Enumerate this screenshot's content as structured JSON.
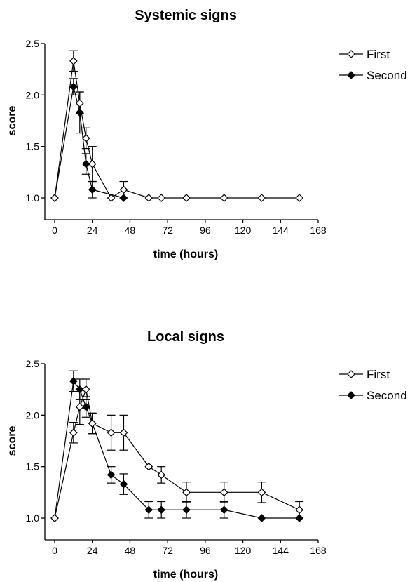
{
  "chart_data": [
    {
      "type": "line",
      "title": "Systemic signs",
      "xlabel": "time (hours)",
      "ylabel": "score",
      "xlim": [
        0,
        168
      ],
      "ylim": [
        1.0,
        2.5
      ],
      "xticks": [
        0,
        24,
        48,
        72,
        96,
        120,
        144,
        168
      ],
      "yticks": [
        "1.0",
        "1.5",
        "2.0",
        "2.5"
      ],
      "legend_position": "top-right",
      "series": [
        {
          "name": "First",
          "marker": "open-diamond",
          "points": [
            {
              "x": 0,
              "y": 1.0,
              "err": 0
            },
            {
              "x": 12,
              "y": 2.33,
              "err": 0.1
            },
            {
              "x": 16,
              "y": 1.92,
              "err": 0.1
            },
            {
              "x": 20,
              "y": 1.58,
              "err": 0.1
            },
            {
              "x": 24,
              "y": 1.33,
              "err": 0.17
            },
            {
              "x": 36,
              "y": 1.0,
              "err": 0
            },
            {
              "x": 44,
              "y": 1.08,
              "err": 0.08
            },
            {
              "x": 60,
              "y": 1.0,
              "err": 0
            },
            {
              "x": 68,
              "y": 1.0,
              "err": 0
            },
            {
              "x": 84,
              "y": 1.0,
              "err": 0
            },
            {
              "x": 108,
              "y": 1.0,
              "err": 0
            },
            {
              "x": 132,
              "y": 1.0,
              "err": 0
            },
            {
              "x": 156,
              "y": 1.0,
              "err": 0
            }
          ]
        },
        {
          "name": "Second",
          "marker": "filled-diamond",
          "points": [
            {
              "x": 0,
              "y": 1.0,
              "err": 0
            },
            {
              "x": 12,
              "y": 2.08,
              "err": 0.08
            },
            {
              "x": 16,
              "y": 1.83,
              "err": 0.2
            },
            {
              "x": 20,
              "y": 1.33,
              "err": 0.1
            },
            {
              "x": 24,
              "y": 1.08,
              "err": 0.08
            },
            {
              "x": 44,
              "y": 1.0,
              "err": 0
            }
          ]
        }
      ]
    },
    {
      "type": "line",
      "title": "Local signs",
      "xlabel": "time (hours)",
      "ylabel": "score",
      "xlim": [
        0,
        168
      ],
      "ylim": [
        1.0,
        2.5
      ],
      "xticks": [
        0,
        24,
        48,
        72,
        96,
        120,
        144,
        168
      ],
      "yticks": [
        "1.0",
        "1.5",
        "2.0",
        "2.5"
      ],
      "legend_position": "top-right",
      "series": [
        {
          "name": "First",
          "marker": "open-diamond",
          "points": [
            {
              "x": 0,
              "y": 1.0,
              "err": 0
            },
            {
              "x": 12,
              "y": 1.83,
              "err": 0.1
            },
            {
              "x": 16,
              "y": 2.08,
              "err": 0.17
            },
            {
              "x": 20,
              "y": 2.25,
              "err": 0.1
            },
            {
              "x": 24,
              "y": 1.92,
              "err": 0.1
            },
            {
              "x": 36,
              "y": 1.83,
              "err": 0.17
            },
            {
              "x": 44,
              "y": 1.83,
              "err": 0.17
            },
            {
              "x": 60,
              "y": 1.5,
              "err": 0
            },
            {
              "x": 68,
              "y": 1.42,
              "err": 0.08
            },
            {
              "x": 84,
              "y": 1.25,
              "err": 0.1
            },
            {
              "x": 108,
              "y": 1.25,
              "err": 0.1
            },
            {
              "x": 132,
              "y": 1.25,
              "err": 0.1
            },
            {
              "x": 156,
              "y": 1.08,
              "err": 0.08
            }
          ]
        },
        {
          "name": "Second",
          "marker": "filled-diamond",
          "points": [
            {
              "x": 0,
              "y": 1.0,
              "err": 0
            },
            {
              "x": 12,
              "y": 2.33,
              "err": 0.1
            },
            {
              "x": 16,
              "y": 2.25,
              "err": 0.1
            },
            {
              "x": 20,
              "y": 2.08,
              "err": 0.1
            },
            {
              "x": 24,
              "y": 1.92,
              "err": 0.1
            },
            {
              "x": 36,
              "y": 1.42,
              "err": 0.08
            },
            {
              "x": 44,
              "y": 1.33,
              "err": 0.1
            },
            {
              "x": 60,
              "y": 1.08,
              "err": 0.08
            },
            {
              "x": 68,
              "y": 1.08,
              "err": 0.08
            },
            {
              "x": 84,
              "y": 1.08,
              "err": 0.08
            },
            {
              "x": 108,
              "y": 1.08,
              "err": 0.08
            },
            {
              "x": 132,
              "y": 1.0,
              "err": 0
            },
            {
              "x": 156,
              "y": 1.0,
              "err": 0
            }
          ]
        }
      ]
    }
  ]
}
